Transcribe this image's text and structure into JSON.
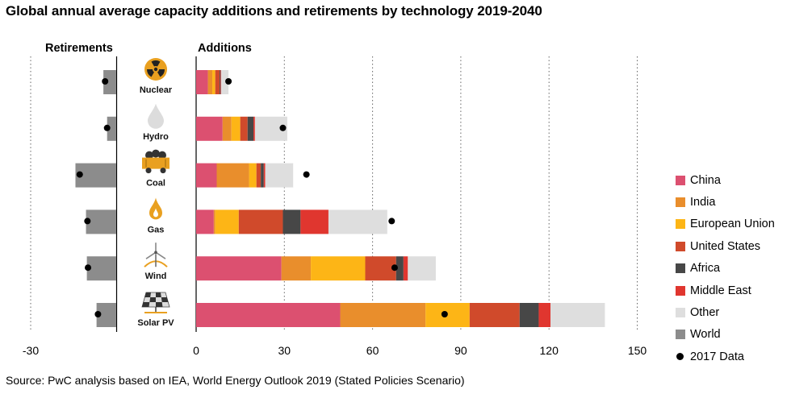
{
  "title": "Global annual average capacity additions and retirements by technology 2019-2040",
  "retirements_label": "Retirements",
  "additions_label": "Additions",
  "source": "Source: PwC analysis based on IEA, World Energy Outlook 2019 (Stated Policies Scenario)",
  "colors": {
    "China": "#dc5070",
    "India": "#e98e2c",
    "European Union": "#fdb516",
    "United States": "#d04a2b",
    "Africa": "#474747",
    "Middle East": "#e0362f",
    "Other": "#dedede",
    "World": "#8c8c8c",
    "2017 Data": "#000000",
    "icon": "#e9a020"
  },
  "legend": [
    {
      "label": "China",
      "key": "China"
    },
    {
      "label": "India",
      "key": "India"
    },
    {
      "label": "European Union",
      "key": "European Union"
    },
    {
      "label": "United States",
      "key": "United States"
    },
    {
      "label": "Africa",
      "key": "Africa"
    },
    {
      "label": "Middle East",
      "key": "Middle East"
    },
    {
      "label": "Other",
      "key": "Other"
    },
    {
      "label": "World",
      "key": "World"
    },
    {
      "label": "2017 Data",
      "key": "2017 Data",
      "marker": "dot"
    }
  ],
  "chart_data": {
    "type": "bar",
    "orientation": "horizontal",
    "stacked": true,
    "categories": [
      "Nuclear",
      "Hydro",
      "Coal",
      "Gas",
      "Wind",
      "Solar PV"
    ],
    "category_icons": [
      "nuclear-icon",
      "water-drop-icon",
      "coal-cart-icon",
      "flame-icon",
      "wind-turbine-icon",
      "solar-panel-icon"
    ],
    "xlim_retirements": [
      -30,
      0
    ],
    "xlim_additions": [
      0,
      150
    ],
    "x_ticks_retirements": [
      -30
    ],
    "x_ticks_additions": [
      0,
      30,
      60,
      90,
      120,
      150
    ],
    "tick_labels": [
      "-30",
      "0",
      "30",
      "60",
      "90",
      "120",
      "150"
    ],
    "grid": "dotted vertical at -30, 30, 60, 90, 120, 150",
    "series": [
      {
        "name": "China",
        "values": [
          4,
          9,
          7,
          6,
          29,
          49
        ]
      },
      {
        "name": "India",
        "values": [
          1.5,
          3,
          11,
          0.5,
          10,
          29
        ]
      },
      {
        "name": "European Union",
        "values": [
          1,
          3,
          2.5,
          8,
          18.5,
          15
        ]
      },
      {
        "name": "United States",
        "values": [
          1.5,
          2.5,
          1.5,
          15,
          10.5,
          17
        ]
      },
      {
        "name": "Africa",
        "values": [
          0.3,
          2,
          1,
          6,
          2.5,
          6.5
        ]
      },
      {
        "name": "Middle East",
        "values": [
          0.2,
          0.5,
          0.5,
          9.5,
          1.5,
          4
        ]
      },
      {
        "name": "Other",
        "values": [
          2.5,
          11,
          9.5,
          20,
          9.5,
          18.5
        ]
      }
    ],
    "retirements_world": [
      -4.5,
      -3.2,
      -14.3,
      -10.6,
      -10.3,
      -6.9
    ],
    "data_2017_additions": [
      11,
      29.5,
      37.5,
      66.5,
      67.5,
      84.5
    ],
    "data_2017_retirements": [
      -3.9,
      -3.2,
      -12.8,
      -10.1,
      -9.9,
      -6.4
    ],
    "legend_position": "right"
  }
}
